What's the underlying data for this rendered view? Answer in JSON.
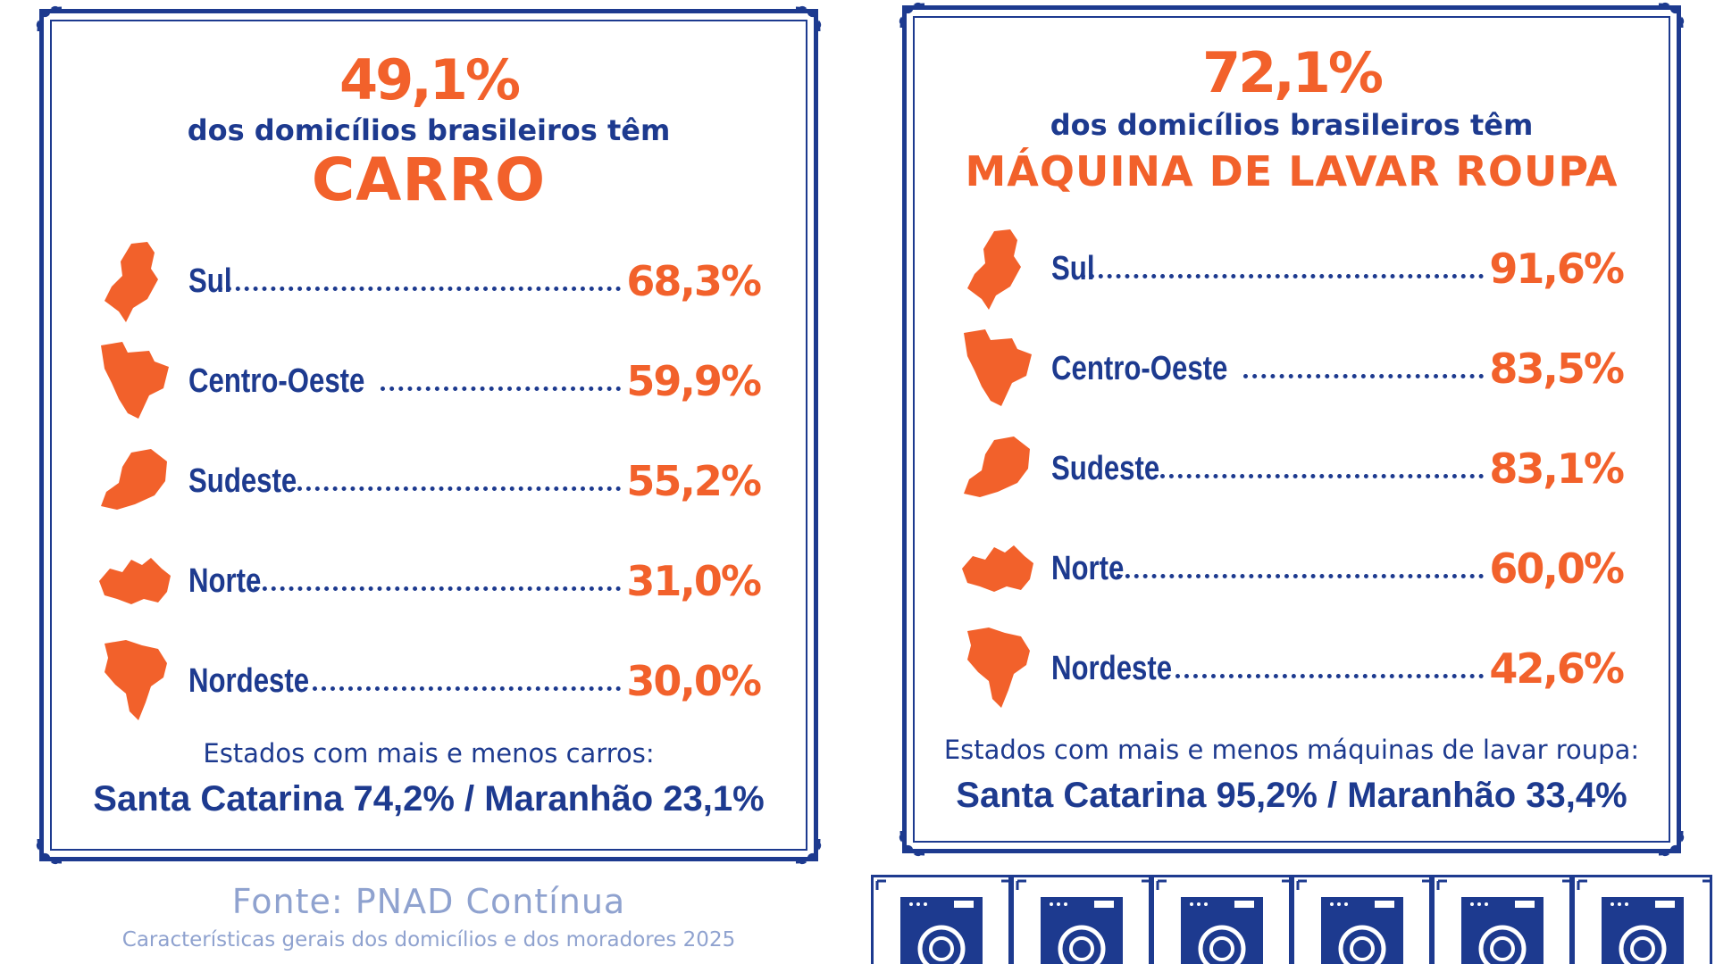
{
  "colors": {
    "accent": "#f2612b",
    "brand": "#1d3a8f",
    "muted": "#8fa2cf"
  },
  "left_card": {
    "headline_pct": "49,1%",
    "headline_sub": "dos domicílios brasileiros têm",
    "headline_item": "CARRO",
    "regions": [
      {
        "name": "Sul",
        "value": "68,3%",
        "icon": "sul-region-map-icon"
      },
      {
        "name": "Centro-Oeste",
        "value": "59,9%",
        "icon": "centro-oeste-region-map-icon"
      },
      {
        "name": "Sudeste",
        "value": "55,2%",
        "icon": "sudeste-region-map-icon"
      },
      {
        "name": "Norte",
        "value": "31,0%",
        "icon": "norte-region-map-icon"
      },
      {
        "name": "Nordeste",
        "value": "30,0%",
        "icon": "nordeste-region-map-icon"
      }
    ],
    "states_label": "Estados com mais e menos carros:",
    "states_values": "Santa Catarina 74,2% / Maranhão 23,1%"
  },
  "right_card": {
    "headline_pct": "72,1%",
    "headline_sub": "dos domicílios brasileiros têm",
    "headline_item": "MÁQUINA DE LAVAR ROUPA",
    "regions": [
      {
        "name": "Sul",
        "value": "91,6%",
        "icon": "sul-region-map-icon"
      },
      {
        "name": "Centro-Oeste",
        "value": "83,5%",
        "icon": "centro-oeste-region-map-icon"
      },
      {
        "name": "Sudeste",
        "value": "83,1%",
        "icon": "sudeste-region-map-icon"
      },
      {
        "name": "Norte",
        "value": "60,0%",
        "icon": "norte-region-map-icon"
      },
      {
        "name": "Nordeste",
        "value": "42,6%",
        "icon": "nordeste-region-map-icon"
      }
    ],
    "states_label": "Estados com mais e menos máquinas de lavar roupa:",
    "states_values": "Santa Catarina 95,2% / Maranhão 33,4%"
  },
  "source": {
    "title": "Fonte: PNAD Contínua",
    "subtitle": "Características gerais dos domicílios e dos moradores 2025"
  },
  "tiles": {
    "icon": "washing-machine-icon",
    "count": 6
  }
}
